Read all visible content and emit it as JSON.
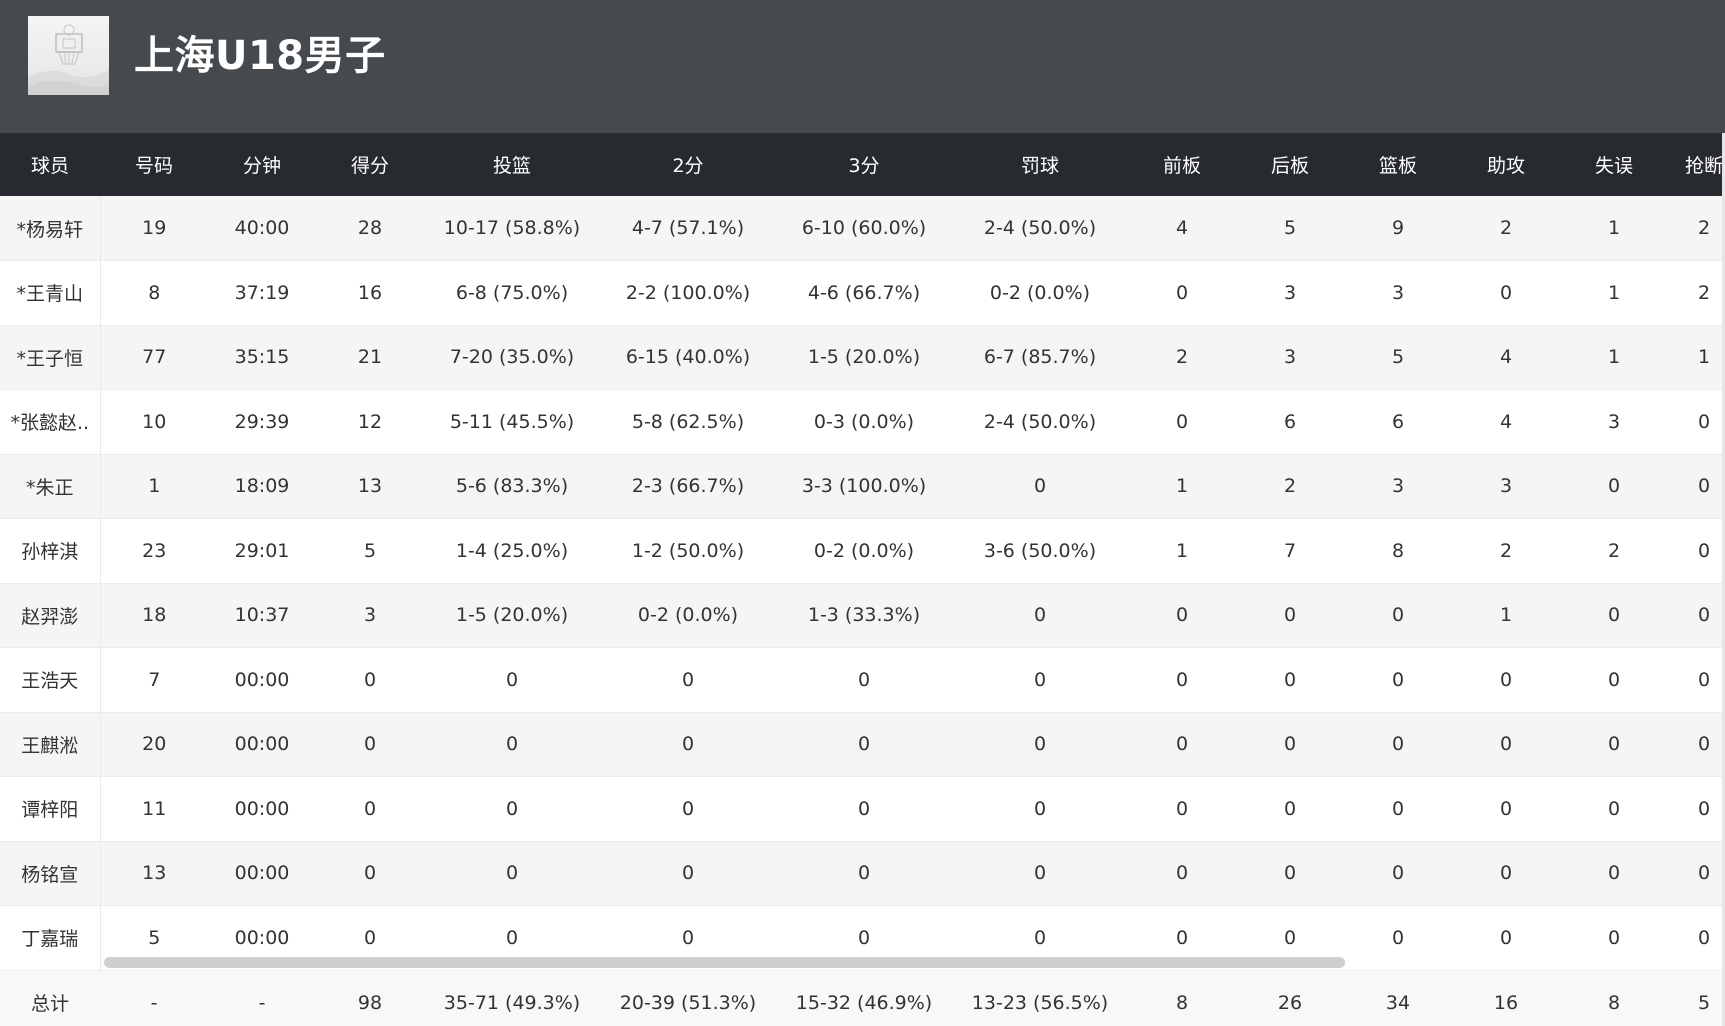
{
  "team": {
    "name": "上海U18男子"
  },
  "columns": [
    "球员",
    "号码",
    "分钟",
    "得分",
    "投篮",
    "2分",
    "3分",
    "罚球",
    "前板",
    "后板",
    "篮板",
    "助攻",
    "失误",
    "抢断"
  ],
  "players": [
    [
      "*杨易轩",
      "19",
      "40:00",
      "28",
      "10-17 (58.8%)",
      "4-7 (57.1%)",
      "6-10 (60.0%)",
      "2-4 (50.0%)",
      "4",
      "5",
      "9",
      "2",
      "1",
      "2"
    ],
    [
      "*王青山",
      "8",
      "37:19",
      "16",
      "6-8 (75.0%)",
      "2-2 (100.0%)",
      "4-6 (66.7%)",
      "0-2 (0.0%)",
      "0",
      "3",
      "3",
      "0",
      "1",
      "2"
    ],
    [
      "*王子恒",
      "77",
      "35:15",
      "21",
      "7-20 (35.0%)",
      "6-15 (40.0%)",
      "1-5 (20.0%)",
      "6-7 (85.7%)",
      "2",
      "3",
      "5",
      "4",
      "1",
      "1"
    ],
    [
      "*张懿赵..",
      "10",
      "29:39",
      "12",
      "5-11 (45.5%)",
      "5-8 (62.5%)",
      "0-3 (0.0%)",
      "2-4 (50.0%)",
      "0",
      "6",
      "6",
      "4",
      "3",
      "0"
    ],
    [
      "*朱正",
      "1",
      "18:09",
      "13",
      "5-6 (83.3%)",
      "2-3 (66.7%)",
      "3-3 (100.0%)",
      "0",
      "1",
      "2",
      "3",
      "3",
      "0",
      "0"
    ],
    [
      "孙梓淇",
      "23",
      "29:01",
      "5",
      "1-4 (25.0%)",
      "1-2 (50.0%)",
      "0-2 (0.0%)",
      "3-6 (50.0%)",
      "1",
      "7",
      "8",
      "2",
      "2",
      "0"
    ],
    [
      "赵羿澎",
      "18",
      "10:37",
      "3",
      "1-5 (20.0%)",
      "0-2 (0.0%)",
      "1-3 (33.3%)",
      "0",
      "0",
      "0",
      "0",
      "1",
      "0",
      "0"
    ],
    [
      "王浩天",
      "7",
      "00:00",
      "0",
      "0",
      "0",
      "0",
      "0",
      "0",
      "0",
      "0",
      "0",
      "0",
      "0"
    ],
    [
      "王麒淞",
      "20",
      "00:00",
      "0",
      "0",
      "0",
      "0",
      "0",
      "0",
      "0",
      "0",
      "0",
      "0",
      "0"
    ],
    [
      "谭梓阳",
      "11",
      "00:00",
      "0",
      "0",
      "0",
      "0",
      "0",
      "0",
      "0",
      "0",
      "0",
      "0",
      "0"
    ],
    [
      "杨铭宣",
      "13",
      "00:00",
      "0",
      "0",
      "0",
      "0",
      "0",
      "0",
      "0",
      "0",
      "0",
      "0",
      "0"
    ],
    [
      "丁嘉瑞",
      "5",
      "00:00",
      "0",
      "0",
      "0",
      "0",
      "0",
      "0",
      "0",
      "0",
      "0",
      "0",
      "0"
    ]
  ],
  "totals": [
    "总计",
    "-",
    "-",
    "98",
    "35-71 (49.3%)",
    "20-39 (51.3%)",
    "15-32 (46.9%)",
    "13-23 (56.5%)",
    "8",
    "26",
    "34",
    "16",
    "8",
    "5"
  ],
  "colors": {
    "header_bg": "#454a4f",
    "table_header_bg": "#272b30",
    "row_alt_bg": "#f5f5f5",
    "text": "#333333"
  },
  "icons": {
    "logo": "basketball-hoop-placeholder-logo"
  }
}
